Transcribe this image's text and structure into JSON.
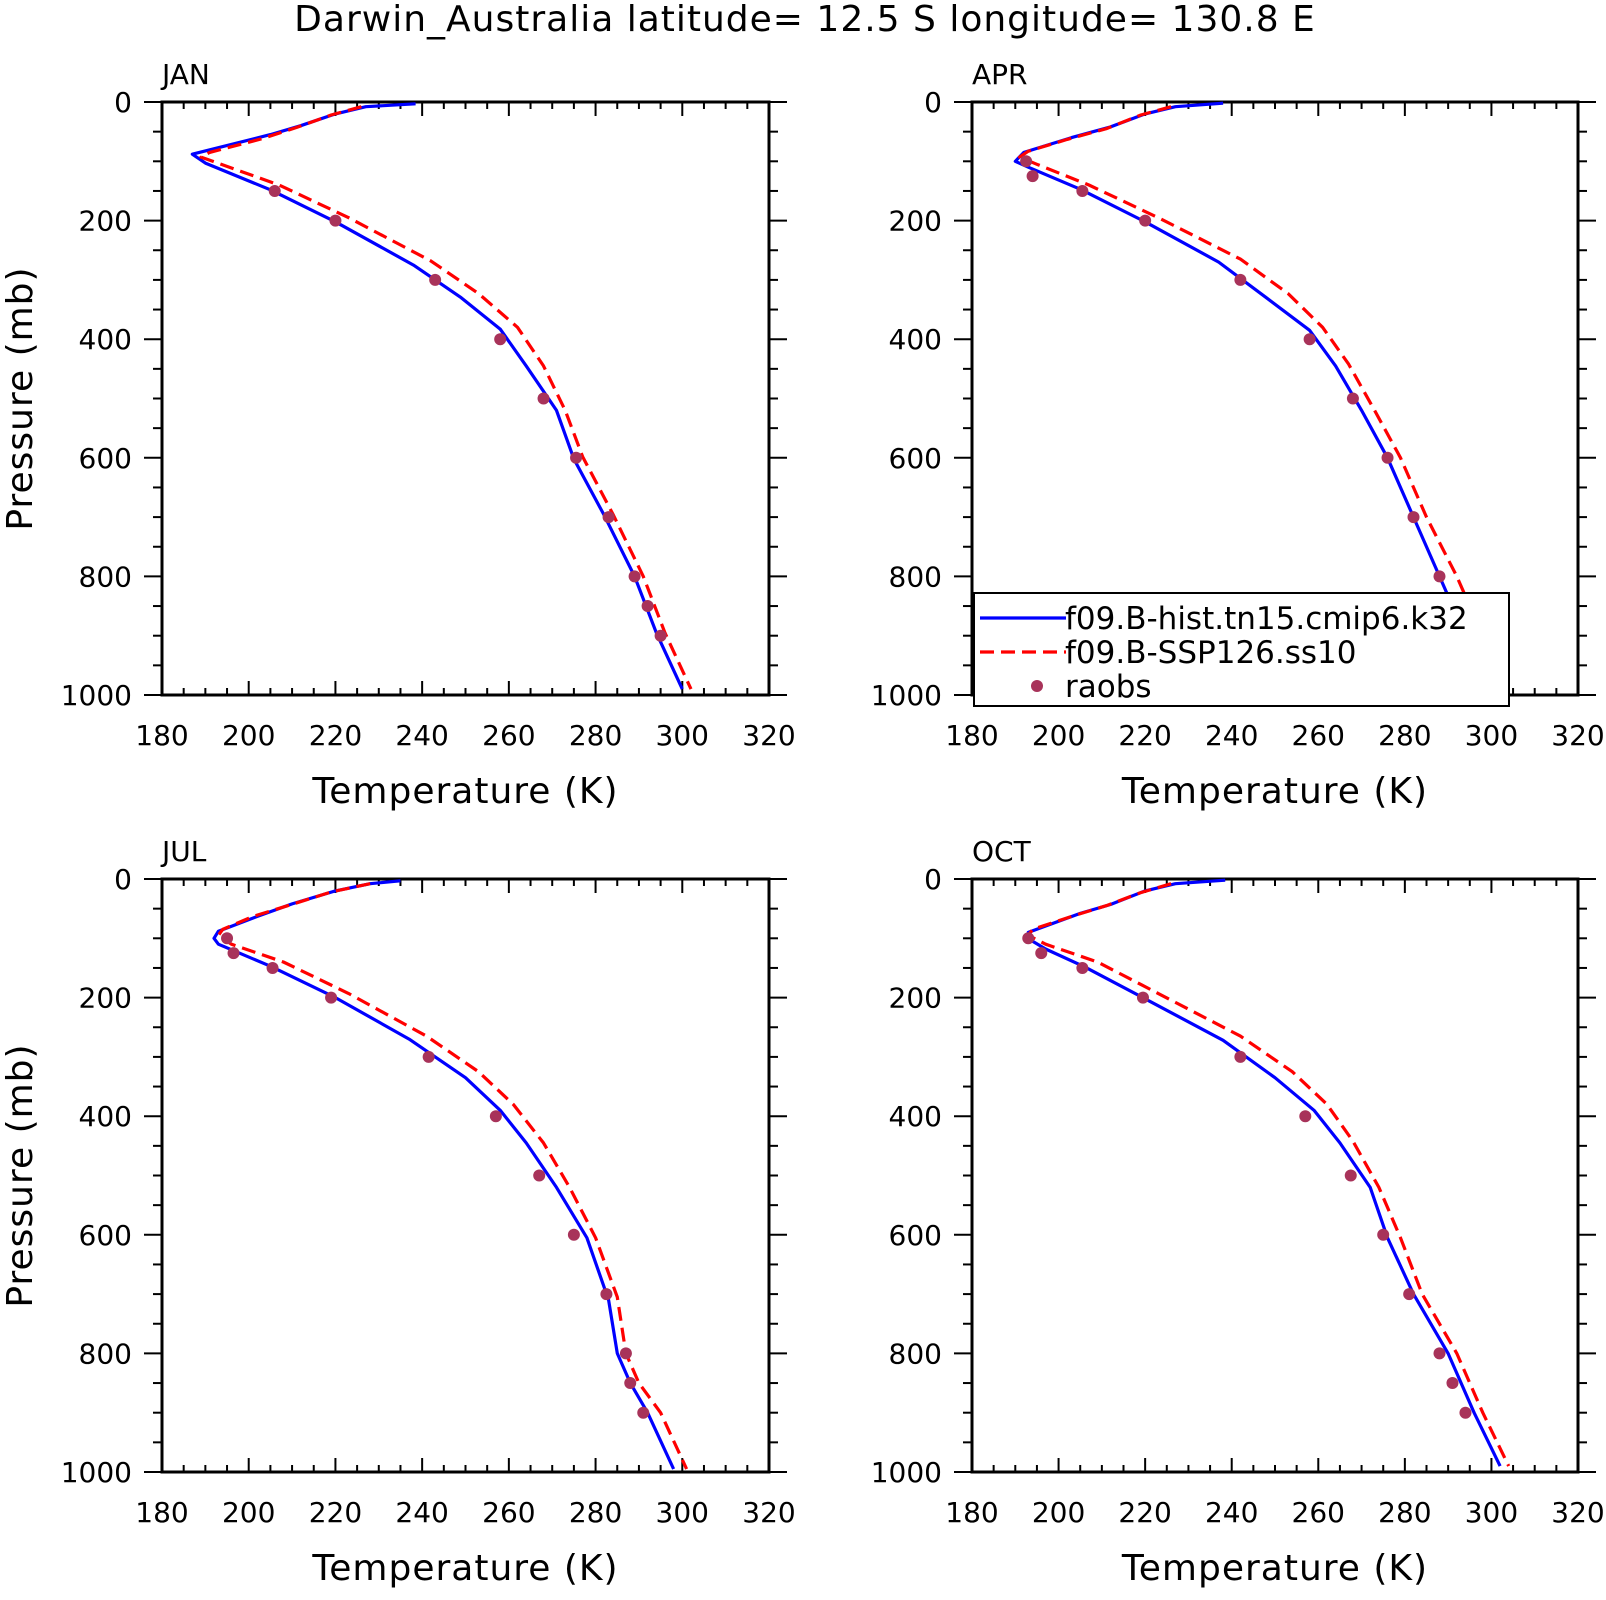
{
  "title": "Darwin_Australia  latitude= 12.5 S longitude= 130.8 E",
  "xlabel": "Temperature (K)",
  "ylabel": "Pressure (mb)",
  "colors": {
    "hist": "#0000ff",
    "ssp": "#ff0000",
    "raobs": "#a8335a"
  },
  "legend": {
    "entries": [
      "f09.B-hist.tn15.cmip6.k32",
      "f09.B-SSP126.ss10",
      "raobs"
    ],
    "placement": "lower-right of APR panel"
  },
  "chart_data": [
    {
      "type": "line",
      "title": "JAN",
      "xlim": [
        180,
        320
      ],
      "ylim": [
        1000,
        0
      ],
      "xticks": [
        180,
        200,
        220,
        240,
        260,
        280,
        300,
        320
      ],
      "yticks": [
        0,
        200,
        400,
        600,
        800,
        1000
      ],
      "series": [
        {
          "name": "f09.B-hist.tn15.cmip6.k32",
          "style": "solid",
          "points": [
            [
              238.5,
              3
            ],
            [
              227,
              8
            ],
            [
              220,
              20
            ],
            [
              212,
              40
            ],
            [
              205,
              55
            ],
            [
              187,
              88
            ],
            [
              190,
              103
            ],
            [
              205,
              148
            ],
            [
              220,
              202
            ],
            [
              238,
              275
            ],
            [
              249,
              330
            ],
            [
              258,
              383
            ],
            [
              264,
              445
            ],
            [
              271,
              520
            ],
            [
              275,
              602
            ],
            [
              282,
              697
            ],
            [
              289,
              800
            ],
            [
              294,
              895
            ],
            [
              300,
              990
            ]
          ]
        },
        {
          "name": "f09.B-SSP126.ss10",
          "style": "dashed",
          "points": [
            [
              226,
              8
            ],
            [
              219,
              22
            ],
            [
              211,
              43
            ],
            [
              203,
              62
            ],
            [
              191,
              85
            ],
            [
              189,
              93
            ],
            [
              207,
              140
            ],
            [
              223,
              195
            ],
            [
              242,
              268
            ],
            [
              253,
              323
            ],
            [
              262,
              380
            ],
            [
              268,
              445
            ],
            [
              273,
              520
            ],
            [
              277,
              598
            ],
            [
              284,
              695
            ],
            [
              291,
              800
            ],
            [
              296,
              895
            ],
            [
              302,
              990
            ]
          ]
        },
        {
          "name": "raobs",
          "style": "markers",
          "points": [
            [
              206,
              150
            ],
            [
              220,
              200
            ],
            [
              243,
              300
            ],
            [
              258,
              400
            ],
            [
              268,
              500
            ],
            [
              275.5,
              600
            ],
            [
              283,
              700
            ],
            [
              289,
              800
            ],
            [
              292,
              850
            ],
            [
              295,
              900
            ]
          ]
        }
      ]
    },
    {
      "type": "line",
      "title": "APR",
      "xlim": [
        180,
        320
      ],
      "ylim": [
        1000,
        0
      ],
      "xticks": [
        180,
        200,
        220,
        240,
        260,
        280,
        300,
        320
      ],
      "yticks": [
        0,
        200,
        400,
        600,
        800,
        1000
      ],
      "series": [
        {
          "name": "f09.B-hist.tn15.cmip6.k32",
          "style": "solid",
          "points": [
            [
              238,
              2
            ],
            [
              227,
              8
            ],
            [
              220,
              20
            ],
            [
              212,
              42
            ],
            [
              203,
              60
            ],
            [
              192,
              85
            ],
            [
              190,
              100
            ],
            [
              193,
              110
            ],
            [
              205,
              147
            ],
            [
              220,
              202
            ],
            [
              237,
              270
            ],
            [
              248,
              330
            ],
            [
              258,
              385
            ],
            [
              264,
              445
            ],
            [
              270,
              520
            ],
            [
              276,
              600
            ],
            [
              282,
              700
            ],
            [
              288,
              800
            ],
            [
              294,
              900
            ],
            [
              301,
              995
            ]
          ]
        },
        {
          "name": "f09.B-SSP126.ss10",
          "style": "dashed",
          "points": [
            [
              226,
              8
            ],
            [
              219,
              22
            ],
            [
              211,
              45
            ],
            [
              202,
              63
            ],
            [
              193,
              83
            ],
            [
              191,
              93
            ],
            [
              195,
              105
            ],
            [
              207,
              140
            ],
            [
              223,
              195
            ],
            [
              242,
              265
            ],
            [
              253,
              323
            ],
            [
              261,
              380
            ],
            [
              267,
              442
            ],
            [
              273,
              520
            ],
            [
              279,
              600
            ],
            [
              285,
              700
            ],
            [
              292,
              800
            ],
            [
              298,
              900
            ],
            [
              304,
              995
            ]
          ]
        },
        {
          "name": "raobs",
          "style": "markers",
          "points": [
            [
              192.5,
              100
            ],
            [
              194,
              125
            ],
            [
              205.5,
              150
            ],
            [
              220,
              200
            ],
            [
              242,
              300
            ],
            [
              258,
              400
            ],
            [
              268,
              500
            ],
            [
              276,
              600
            ],
            [
              282,
              700
            ],
            [
              288,
              800
            ],
            [
              291,
              850
            ],
            [
              294,
              900
            ]
          ]
        }
      ]
    },
    {
      "type": "line",
      "title": "JUL",
      "xlim": [
        180,
        320
      ],
      "ylim": [
        1000,
        0
      ],
      "xticks": [
        180,
        200,
        220,
        240,
        260,
        280,
        300,
        320
      ],
      "yticks": [
        0,
        200,
        400,
        600,
        800,
        1000
      ],
      "series": [
        {
          "name": "f09.B-hist.tn15.cmip6.k32",
          "style": "solid",
          "points": [
            [
              235,
              3
            ],
            [
              228,
              8
            ],
            [
              220,
              20
            ],
            [
              210,
              42
            ],
            [
              202,
              63
            ],
            [
              193,
              88
            ],
            [
              192,
              100
            ],
            [
              193,
              110
            ],
            [
              205,
              147
            ],
            [
              220,
              200
            ],
            [
              237,
              270
            ],
            [
              250,
              335
            ],
            [
              258,
              390
            ],
            [
              264,
              445
            ],
            [
              271,
              520
            ],
            [
              278,
              605
            ],
            [
              283,
              710
            ],
            [
              285,
              800
            ],
            [
              288,
              850
            ],
            [
              292,
              900
            ],
            [
              298,
              995
            ]
          ]
        },
        {
          "name": "f09.B-SSP126.ss10",
          "style": "dashed",
          "points": [
            [
              228,
              8
            ],
            [
              219,
              22
            ],
            [
              209,
              45
            ],
            [
              201,
              63
            ],
            [
              194,
              85
            ],
            [
              193,
              95
            ],
            [
              196,
              110
            ],
            [
              208,
              140
            ],
            [
              223,
              193
            ],
            [
              241,
              265
            ],
            [
              253,
              325
            ],
            [
              261,
              380
            ],
            [
              268,
              445
            ],
            [
              274,
              520
            ],
            [
              280,
              605
            ],
            [
              285,
              705
            ],
            [
              287,
              800
            ],
            [
              290,
              850
            ],
            [
              295,
              900
            ],
            [
              301,
              995
            ]
          ]
        },
        {
          "name": "raobs",
          "style": "markers",
          "points": [
            [
              195,
              100
            ],
            [
              196.5,
              125
            ],
            [
              205.5,
              150
            ],
            [
              219,
              200
            ],
            [
              241.5,
              300
            ],
            [
              257,
              400
            ],
            [
              267,
              500
            ],
            [
              275,
              600
            ],
            [
              282.5,
              700
            ],
            [
              287,
              800
            ],
            [
              288,
              850
            ],
            [
              291,
              900
            ]
          ]
        }
      ]
    },
    {
      "type": "line",
      "title": "OCT",
      "xlim": [
        180,
        320
      ],
      "ylim": [
        1000,
        0
      ],
      "xticks": [
        180,
        200,
        220,
        240,
        260,
        280,
        300,
        320
      ],
      "yticks": [
        0,
        200,
        400,
        600,
        800,
        1000
      ],
      "series": [
        {
          "name": "f09.B-hist.tn15.cmip6.k32",
          "style": "solid",
          "points": [
            [
              238.5,
              2
            ],
            [
              227,
              8
            ],
            [
              220,
              20
            ],
            [
              212,
              43
            ],
            [
              205,
              58
            ],
            [
              193,
              90
            ],
            [
              194,
              105
            ],
            [
              197,
              118
            ],
            [
              206,
              148
            ],
            [
              220,
              202
            ],
            [
              238,
              272
            ],
            [
              250,
              335
            ],
            [
              259,
              390
            ],
            [
              265,
              445
            ],
            [
              272,
              520
            ],
            [
              276,
              605
            ],
            [
              282,
              700
            ],
            [
              290,
              800
            ],
            [
              296,
              900
            ],
            [
              302,
              990
            ]
          ]
        },
        {
          "name": "f09.B-SSP126.ss10",
          "style": "dashed",
          "points": [
            [
              226,
              8
            ],
            [
              219,
              23
            ],
            [
              211,
              45
            ],
            [
              203,
              63
            ],
            [
              194,
              85
            ],
            [
              193,
              95
            ],
            [
              197,
              110
            ],
            [
              209,
              140
            ],
            [
              223,
              193
            ],
            [
              242,
              265
            ],
            [
              254,
              325
            ],
            [
              262,
              380
            ],
            [
              268,
              442
            ],
            [
              274,
              520
            ],
            [
              279,
              605
            ],
            [
              284,
              700
            ],
            [
              292,
              800
            ],
            [
              298,
              900
            ],
            [
              304,
              990
            ]
          ]
        },
        {
          "name": "raobs",
          "style": "markers",
          "points": [
            [
              193,
              100
            ],
            [
              196,
              125
            ],
            [
              205.5,
              150
            ],
            [
              219.5,
              200
            ],
            [
              242,
              300
            ],
            [
              257,
              400
            ],
            [
              267.5,
              500
            ],
            [
              275,
              600
            ],
            [
              281,
              700
            ],
            [
              288,
              800
            ],
            [
              291,
              850
            ],
            [
              294,
              900
            ]
          ]
        }
      ]
    }
  ]
}
